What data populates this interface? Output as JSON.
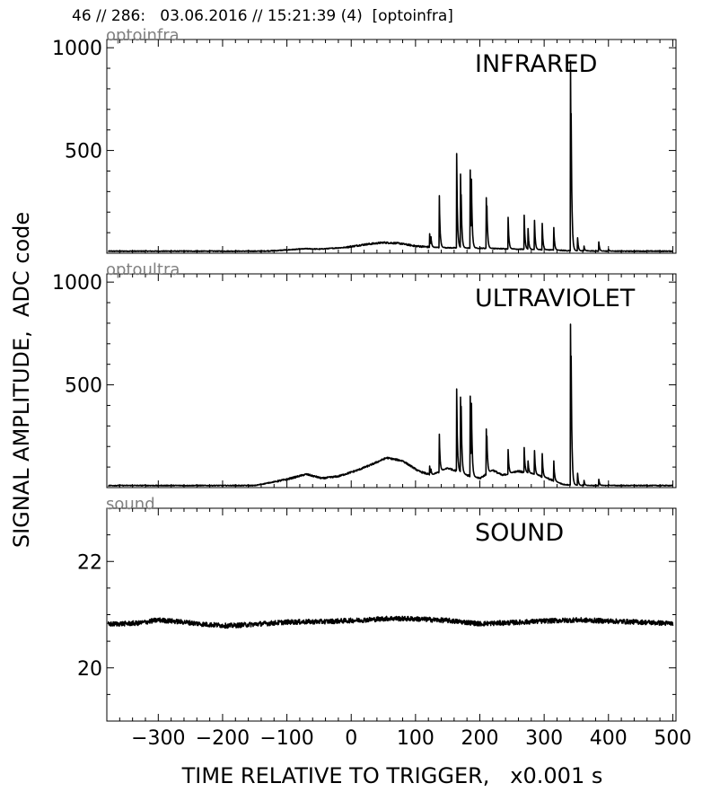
{
  "header": {
    "text": "46 // 286:   03.06.2016 // 15:21:39 (4)  [optoinfra]"
  },
  "figure": {
    "ylabel": "SIGNAL AMPLITUDE,  ADC code",
    "xlabel": "TIME RELATIVE TO TRIGGER,   x0.001 s"
  },
  "chart_data": [
    {
      "type": "line",
      "panel_tag": "optoinfra",
      "title": "INFRARED",
      "xlim": [
        -380,
        505
      ],
      "ylim": [
        0,
        1040
      ],
      "x_ticks": [
        -300,
        -200,
        -100,
        0,
        100,
        200,
        300,
        400,
        500
      ],
      "y_ticks": [
        500,
        1000
      ],
      "y_ticklabels": [
        "500",
        "1000"
      ],
      "baseline": 10,
      "background": [
        [
          -380,
          10
        ],
        [
          -140,
          10
        ],
        [
          -120,
          12
        ],
        [
          -70,
          22
        ],
        [
          -50,
          20
        ],
        [
          -10,
          28
        ],
        [
          20,
          42
        ],
        [
          50,
          52
        ],
        [
          75,
          48
        ],
        [
          100,
          35
        ],
        [
          130,
          28
        ],
        [
          160,
          26
        ],
        [
          210,
          24
        ],
        [
          260,
          20
        ],
        [
          310,
          16
        ],
        [
          340,
          12
        ],
        [
          400,
          10
        ],
        [
          505,
          10
        ]
      ],
      "peaks": [
        [
          122,
          95
        ],
        [
          124,
          80
        ],
        [
          137,
          280
        ],
        [
          164,
          485
        ],
        [
          170,
          385
        ],
        [
          171,
          285
        ],
        [
          185,
          405
        ],
        [
          187,
          360
        ],
        [
          210,
          270
        ],
        [
          211,
          230
        ],
        [
          244,
          175
        ],
        [
          269,
          185
        ],
        [
          275,
          120
        ],
        [
          285,
          160
        ],
        [
          297,
          145
        ],
        [
          315,
          125
        ],
        [
          341,
          935
        ],
        [
          342,
          680
        ],
        [
          352,
          75
        ],
        [
          362,
          35
        ],
        [
          385,
          55
        ],
        [
          400,
          20
        ]
      ],
      "grid": false
    },
    {
      "type": "line",
      "panel_tag": "optoultra",
      "title": "ULTRAVIOLET",
      "xlim": [
        -380,
        505
      ],
      "ylim": [
        0,
        1040
      ],
      "x_ticks": [
        -300,
        -200,
        -100,
        0,
        100,
        200,
        300,
        400,
        500
      ],
      "y_ticks": [
        500,
        1000
      ],
      "y_ticklabels": [
        "500",
        "1000"
      ],
      "baseline": 10,
      "background": [
        [
          -380,
          10
        ],
        [
          -150,
          10
        ],
        [
          -130,
          22
        ],
        [
          -100,
          40
        ],
        [
          -70,
          65
        ],
        [
          -45,
          45
        ],
        [
          -20,
          55
        ],
        [
          10,
          85
        ],
        [
          30,
          110
        ],
        [
          55,
          145
        ],
        [
          80,
          130
        ],
        [
          105,
          80
        ],
        [
          125,
          60
        ],
        [
          150,
          95
        ],
        [
          165,
          80
        ],
        [
          180,
          60
        ],
        [
          200,
          45
        ],
        [
          220,
          85
        ],
        [
          235,
          60
        ],
        [
          260,
          80
        ],
        [
          285,
          65
        ],
        [
          305,
          45
        ],
        [
          330,
          15
        ],
        [
          360,
          10
        ],
        [
          505,
          10
        ]
      ],
      "peaks": [
        [
          122,
          105
        ],
        [
          124,
          90
        ],
        [
          137,
          260
        ],
        [
          164,
          480
        ],
        [
          170,
          440
        ],
        [
          171,
          395
        ],
        [
          185,
          445
        ],
        [
          187,
          410
        ],
        [
          210,
          285
        ],
        [
          211,
          250
        ],
        [
          244,
          185
        ],
        [
          269,
          195
        ],
        [
          275,
          130
        ],
        [
          285,
          180
        ],
        [
          297,
          165
        ],
        [
          315,
          130
        ],
        [
          341,
          795
        ],
        [
          342,
          640
        ],
        [
          352,
          70
        ],
        [
          362,
          35
        ],
        [
          385,
          40
        ],
        [
          400,
          15
        ]
      ],
      "grid": false
    },
    {
      "type": "line",
      "panel_tag": "sound",
      "title": "SOUND",
      "xlim": [
        -380,
        505
      ],
      "ylim": [
        19,
        23
      ],
      "x_ticks": [
        -300,
        -200,
        -100,
        0,
        100,
        200,
        300,
        400,
        500
      ],
      "x_ticklabels": [
        "−300",
        "−200",
        "−100",
        "0",
        "100",
        "200",
        "300",
        "400",
        "500"
      ],
      "y_ticks": [
        20,
        22
      ],
      "y_ticklabels": [
        "20",
        "22"
      ],
      "background": [
        [
          -380,
          20.82
        ],
        [
          -330,
          20.84
        ],
        [
          -300,
          20.9
        ],
        [
          -260,
          20.86
        ],
        [
          -230,
          20.82
        ],
        [
          -190,
          20.79
        ],
        [
          -150,
          20.82
        ],
        [
          -100,
          20.86
        ],
        [
          -40,
          20.87
        ],
        [
          20,
          20.9
        ],
        [
          60,
          20.93
        ],
        [
          100,
          20.92
        ],
        [
          150,
          20.89
        ],
        [
          200,
          20.83
        ],
        [
          250,
          20.85
        ],
        [
          300,
          20.88
        ],
        [
          350,
          20.9
        ],
        [
          400,
          20.88
        ],
        [
          450,
          20.86
        ],
        [
          505,
          20.83
        ]
      ],
      "peaks": [],
      "grid": false
    }
  ]
}
